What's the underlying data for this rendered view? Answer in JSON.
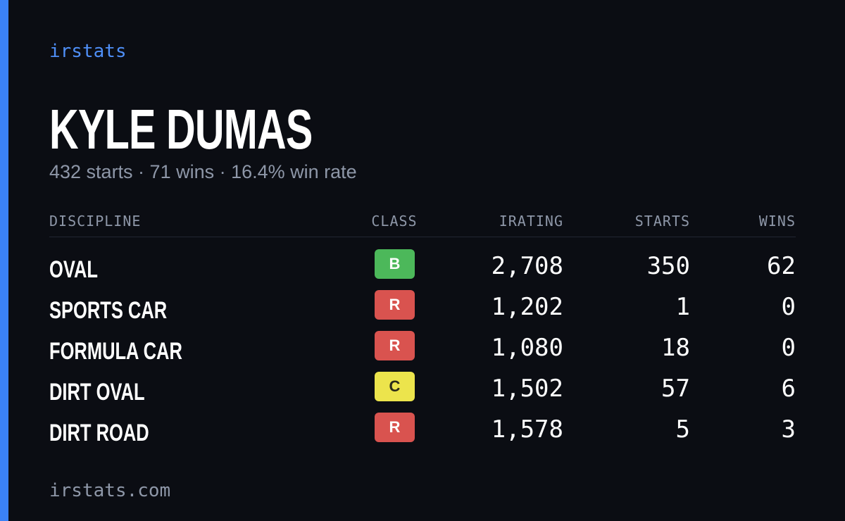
{
  "brand": "irstats",
  "profile": {
    "name": "KYLE DUMAS",
    "summary": "432 starts · 71 wins · 16.4% win rate"
  },
  "table": {
    "headers": [
      "DISCIPLINE",
      "CLASS",
      "IRATING",
      "STARTS",
      "WINS"
    ],
    "rows": [
      {
        "discipline": "OVAL",
        "class": "B",
        "class_color": "#4cb85a",
        "irating": "2,708",
        "starts": "350",
        "wins": "62"
      },
      {
        "discipline": "SPORTS CAR",
        "class": "R",
        "class_color": "#d9534f",
        "irating": "1,202",
        "starts": "1",
        "wins": "0"
      },
      {
        "discipline": "FORMULA CAR",
        "class": "R",
        "class_color": "#d9534f",
        "irating": "1,080",
        "starts": "18",
        "wins": "0"
      },
      {
        "discipline": "DIRT OVAL",
        "class": "C",
        "class_color": "#ece44c",
        "irating": "1,502",
        "starts": "57",
        "wins": "6"
      },
      {
        "discipline": "DIRT ROAD",
        "class": "R",
        "class_color": "#d9534f",
        "irating": "1,578",
        "starts": "5",
        "wins": "3"
      }
    ]
  },
  "footer": "irstats.com"
}
